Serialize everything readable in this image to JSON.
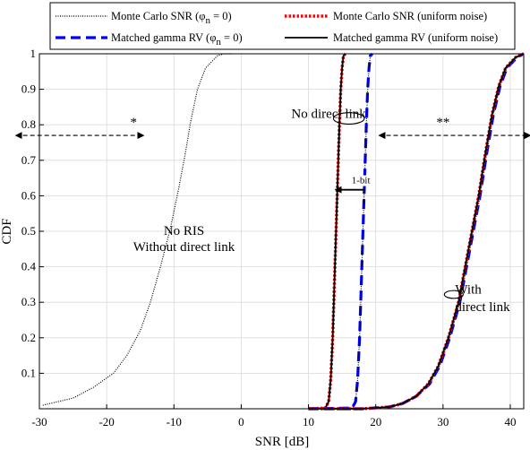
{
  "chart_data": {
    "type": "line",
    "xlabel": "SNR [dB]",
    "ylabel": "CDF",
    "xlim": [
      -30,
      42
    ],
    "ylim": [
      0,
      1
    ],
    "xticks": [
      "-30",
      "-20",
      "-10",
      "0",
      "10",
      "20",
      "30",
      "40"
    ],
    "yticks": [
      "0.1",
      "0.2",
      "0.3",
      "0.4",
      "0.5",
      "0.6",
      "0.7",
      "0.8",
      "0.9",
      "1"
    ],
    "grid": true,
    "legend_position": "top",
    "legend": [
      {
        "label": "Monte Carlo SNR (φ",
        "sub": "n",
        "tail": " = 0)",
        "style": "dotted",
        "color": "#000000"
      },
      {
        "label": "Monte Carlo SNR (uniform noise)",
        "style": "dotted-thick",
        "color": "#ff0000"
      },
      {
        "label": "Matched gamma RV (φ",
        "sub": "n",
        "tail": " = 0)",
        "style": "dashed",
        "color": "#0000ff"
      },
      {
        "label": "Matched gamma RV (uniform noise)",
        "style": "solid",
        "color": "#000000"
      }
    ],
    "series": [
      {
        "group": "no-ris",
        "style": "dotted",
        "color": "#000000",
        "x": [
          -29.5,
          -25,
          -22,
          -19,
          -17,
          -15,
          -13.5,
          -12,
          -10.5,
          -9.3,
          -8.3,
          -7.5,
          -6.5,
          -5.3,
          -3.5,
          -2.5,
          -1.5
        ],
        "y": [
          0.01,
          0.03,
          0.06,
          0.1,
          0.15,
          0.22,
          0.3,
          0.4,
          0.51,
          0.62,
          0.72,
          0.81,
          0.9,
          0.96,
          0.995,
          1.0,
          1.0
        ]
      },
      {
        "group": "ris-no-direct-uniform-mc",
        "style": "dotted-thick",
        "color": "#ff0000",
        "x": [
          10,
          12.5,
          13.0,
          13.3,
          13.6,
          13.85,
          14.1,
          14.35,
          14.6,
          14.8,
          15.0,
          15.2,
          15.5
        ],
        "y": [
          0.0,
          0.002,
          0.02,
          0.08,
          0.2,
          0.35,
          0.5,
          0.65,
          0.8,
          0.9,
          0.96,
          0.995,
          1.0
        ]
      },
      {
        "group": "ris-no-direct-uniform-gamma",
        "style": "solid",
        "color": "#000000",
        "x": [
          10,
          12.5,
          13.0,
          13.3,
          13.6,
          13.85,
          14.1,
          14.35,
          14.6,
          14.8,
          15.0,
          15.2,
          15.5
        ],
        "y": [
          0.0,
          0.002,
          0.02,
          0.08,
          0.2,
          0.35,
          0.5,
          0.65,
          0.8,
          0.9,
          0.96,
          0.995,
          1.0
        ]
      },
      {
        "group": "ris-no-direct-phi0-gamma",
        "style": "dashed",
        "color": "#0000ff",
        "x": [
          10,
          16.5,
          17.0,
          17.3,
          17.6,
          17.85,
          18.1,
          18.35,
          18.6,
          18.8,
          19.0,
          19.2,
          19.5
        ],
        "y": [
          0.0,
          0.002,
          0.02,
          0.08,
          0.2,
          0.35,
          0.5,
          0.65,
          0.8,
          0.9,
          0.96,
          0.995,
          1.0
        ]
      },
      {
        "group": "ris-no-direct-phi0-mc",
        "style": "dotted",
        "color": "#000000",
        "x": [
          10,
          16.5,
          17.0,
          17.3,
          17.6,
          17.85,
          18.1,
          18.35,
          18.6,
          18.8,
          19.0,
          19.2,
          19.5
        ],
        "y": [
          0.0,
          0.002,
          0.02,
          0.08,
          0.2,
          0.35,
          0.5,
          0.65,
          0.8,
          0.9,
          0.96,
          0.995,
          1.0
        ]
      },
      {
        "group": "ris-direct-phi0-gamma",
        "style": "dashed",
        "color": "#0000ff",
        "x": [
          10,
          18,
          22,
          24,
          26,
          28,
          29.5,
          31,
          32.5,
          33.5,
          34.5,
          35.5,
          36.5,
          37.5,
          38.5,
          39.5,
          41,
          42
        ],
        "y": [
          0.0,
          0.0,
          0.005,
          0.015,
          0.035,
          0.07,
          0.12,
          0.2,
          0.3,
          0.4,
          0.5,
          0.6,
          0.72,
          0.83,
          0.91,
          0.96,
          0.99,
          1.0
        ]
      },
      {
        "group": "ris-direct-phi0-mc",
        "style": "dotted",
        "color": "#000000",
        "x": [
          10,
          18,
          22,
          24,
          26,
          28,
          29.5,
          31,
          32.5,
          33.5,
          34.5,
          35.5,
          36.5,
          37.5,
          38.5,
          39.5,
          41,
          42
        ],
        "y": [
          0.0,
          0.0,
          0.005,
          0.015,
          0.035,
          0.07,
          0.12,
          0.2,
          0.3,
          0.4,
          0.5,
          0.6,
          0.72,
          0.83,
          0.91,
          0.96,
          0.99,
          1.0
        ]
      },
      {
        "group": "ris-direct-uniform-mc",
        "style": "dotted-thick",
        "color": "#ff0000",
        "x": [
          10,
          18,
          22,
          24,
          26,
          27.8,
          29.3,
          30.8,
          32.3,
          33.3,
          34.3,
          35.3,
          36.3,
          37.3,
          38.3,
          39.3,
          40.8,
          42
        ],
        "y": [
          0.0,
          0.0,
          0.005,
          0.015,
          0.035,
          0.07,
          0.12,
          0.2,
          0.3,
          0.4,
          0.5,
          0.6,
          0.72,
          0.83,
          0.91,
          0.96,
          0.99,
          1.0
        ]
      },
      {
        "group": "ris-direct-uniform-gamma",
        "style": "solid",
        "color": "#000000",
        "x": [
          10,
          18,
          22,
          24,
          26,
          27.8,
          29.3,
          30.8,
          32.3,
          33.3,
          34.3,
          35.3,
          36.3,
          37.3,
          38.3,
          39.3,
          40.8,
          42
        ],
        "y": [
          0.0,
          0.0,
          0.005,
          0.015,
          0.035,
          0.07,
          0.12,
          0.2,
          0.3,
          0.4,
          0.5,
          0.6,
          0.72,
          0.83,
          0.91,
          0.96,
          0.99,
          1.0
        ]
      }
    ],
    "annotations": {
      "star1": "*",
      "star2": "**",
      "no_direct_link": "No direct link",
      "one_bit": "1-bit",
      "no_ris_line1": "No RIS",
      "no_ris_line2": "Without direct link",
      "with_line1": "With",
      "with_line2": "direct link"
    },
    "annotation_positions": {
      "star_arrow_left": {
        "x1": -33.5,
        "x2": -14.5,
        "y": 0.77
      },
      "star1": {
        "x": -16,
        "y": 0.795
      },
      "star_arrow_right": {
        "x1": 20.5,
        "x2": 43,
        "y": 0.77
      },
      "star2": {
        "x": 30,
        "y": 0.795
      },
      "no_direct_link": {
        "x": 13,
        "y": 0.82
      },
      "ellipse_no_direct": {
        "cx": 16,
        "cy": 0.818,
        "rx_dx": 2.3,
        "ry_dy": 0.016
      },
      "one_bit": {
        "x": 17.8,
        "y": 0.635
      },
      "one_bit_arrow": {
        "x1": 18.5,
        "x2": 14.0,
        "y": 0.617
      },
      "no_ris_line1": {
        "x": -8.5,
        "y": 0.49
      },
      "no_ris_line2": {
        "x": -8.5,
        "y": 0.445
      },
      "ellipse_with": {
        "cx": 31.6,
        "cy": 0.322,
        "rx_dx": 1.4,
        "ry_dy": 0.011
      },
      "with_line1": {
        "x": 31.8,
        "y": 0.325
      },
      "with_line2": {
        "x": 31.8,
        "y": 0.275
      }
    }
  }
}
